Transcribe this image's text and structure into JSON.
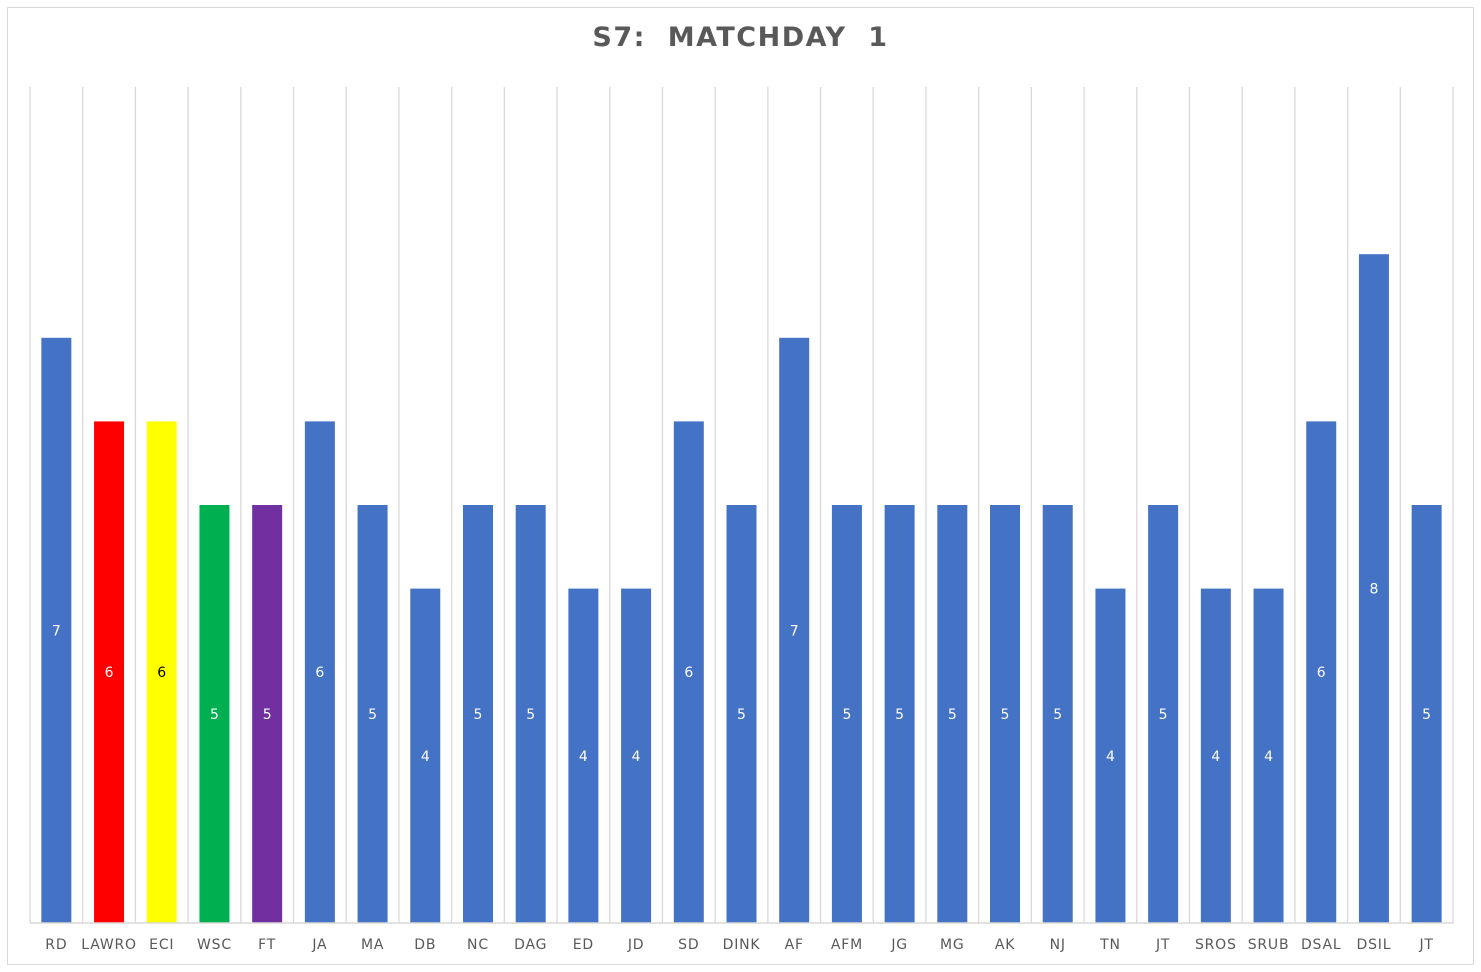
{
  "chart_data": {
    "type": "bar",
    "title": "S7:  MATCHDAY  1",
    "xlabel": "",
    "ylabel": "",
    "ylim": [
      0,
      10
    ],
    "grid": "vertical",
    "legend": "none",
    "categories": [
      "RD",
      "LAWRO",
      "ECI",
      "WSC",
      "FT",
      "JA",
      "MA",
      "DB",
      "NC",
      "DAG",
      "ED",
      "JD",
      "SD",
      "DINK",
      "AF",
      "AFM",
      "JG",
      "MG",
      "AK",
      "NJ",
      "TN",
      "JT",
      "SROS",
      "SRUB",
      "DSAL",
      "DSIL",
      "JT"
    ],
    "values": [
      7,
      6,
      6,
      5,
      5,
      6,
      5,
      4,
      5,
      5,
      4,
      4,
      6,
      5,
      7,
      5,
      5,
      5,
      5,
      5,
      4,
      5,
      4,
      4,
      6,
      8,
      5
    ],
    "colors": [
      "#4472c4",
      "#ff0000",
      "#ffff00",
      "#00b050",
      "#7030a0",
      "#4472c4",
      "#4472c4",
      "#4472c4",
      "#4472c4",
      "#4472c4",
      "#4472c4",
      "#4472c4",
      "#4472c4",
      "#4472c4",
      "#4472c4",
      "#4472c4",
      "#4472c4",
      "#4472c4",
      "#4472c4",
      "#4472c4",
      "#4472c4",
      "#4472c4",
      "#4472c4",
      "#4472c4",
      "#4472c4",
      "#4472c4",
      "#4472c4"
    ],
    "label_colors": [
      "#ffffff",
      "#ffffff",
      "#000000",
      "#ffffff",
      "#ffffff",
      "#ffffff",
      "#ffffff",
      "#ffffff",
      "#ffffff",
      "#ffffff",
      "#ffffff",
      "#ffffff",
      "#ffffff",
      "#ffffff",
      "#ffffff",
      "#ffffff",
      "#ffffff",
      "#ffffff",
      "#ffffff",
      "#ffffff",
      "#ffffff",
      "#ffffff",
      "#ffffff",
      "#ffffff",
      "#ffffff",
      "#ffffff",
      "#ffffff"
    ],
    "gridline_color": "#d9d9d9",
    "axis_color": "#d9d9d9"
  }
}
